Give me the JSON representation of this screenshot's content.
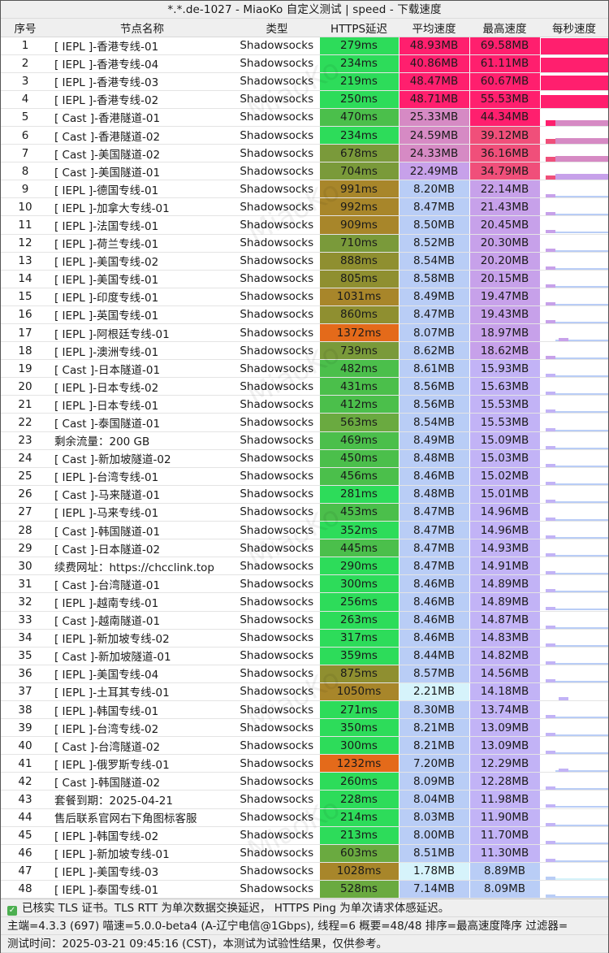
{
  "window": {
    "title": "*.*.de-1027 - MiaoKo 自定义测试 | speed - 下载速度"
  },
  "table": {
    "headers": [
      "序号",
      "节点名称",
      "类型",
      "HTTPS延迟",
      "平均速度",
      "最高速度",
      "每秒速度"
    ],
    "rows": [
      {
        "idx": "1",
        "name": "[ IEPL ]-香港专线-01",
        "type": "Shadowsocks",
        "latency": "279ms",
        "avg": "48.93MB",
        "max": "69.58MB"
      },
      {
        "idx": "2",
        "name": "[ IEPL ]-香港专线-04",
        "type": "Shadowsocks",
        "latency": "234ms",
        "avg": "40.86MB",
        "max": "61.11MB"
      },
      {
        "idx": "3",
        "name": "[ IEPL ]-香港专线-03",
        "type": "Shadowsocks",
        "latency": "219ms",
        "avg": "48.47MB",
        "max": "60.67MB"
      },
      {
        "idx": "4",
        "name": "[ IEPL ]-香港专线-02",
        "type": "Shadowsocks",
        "latency": "250ms",
        "avg": "48.71MB",
        "max": "55.53MB"
      },
      {
        "idx": "5",
        "name": "[ Cast ]-香港隧道-01",
        "type": "Shadowsocks",
        "latency": "470ms",
        "avg": "25.33MB",
        "max": "44.34MB"
      },
      {
        "idx": "6",
        "name": "[ Cast ]-香港隧道-02",
        "type": "Shadowsocks",
        "latency": "234ms",
        "avg": "24.59MB",
        "max": "39.12MB"
      },
      {
        "idx": "7",
        "name": "[ Cast ]-美国隧道-02",
        "type": "Shadowsocks",
        "latency": "678ms",
        "avg": "24.33MB",
        "max": "36.16MB"
      },
      {
        "idx": "8",
        "name": "[ Cast ]-美国隧道-01",
        "type": "Shadowsocks",
        "latency": "704ms",
        "avg": "22.49MB",
        "max": "34.79MB"
      },
      {
        "idx": "9",
        "name": "[ IEPL ]-德国专线-01",
        "type": "Shadowsocks",
        "latency": "991ms",
        "avg": "8.20MB",
        "max": "22.14MB"
      },
      {
        "idx": "10",
        "name": "[ IEPL ]-加拿大专线-01",
        "type": "Shadowsocks",
        "latency": "992ms",
        "avg": "8.47MB",
        "max": "21.43MB"
      },
      {
        "idx": "11",
        "name": "[ IEPL ]-法国专线-01",
        "type": "Shadowsocks",
        "latency": "909ms",
        "avg": "8.50MB",
        "max": "20.45MB"
      },
      {
        "idx": "12",
        "name": "[ IEPL ]-荷兰专线-01",
        "type": "Shadowsocks",
        "latency": "710ms",
        "avg": "8.52MB",
        "max": "20.30MB"
      },
      {
        "idx": "13",
        "name": "[ IEPL ]-美国专线-02",
        "type": "Shadowsocks",
        "latency": "888ms",
        "avg": "8.54MB",
        "max": "20.20MB"
      },
      {
        "idx": "14",
        "name": "[ IEPL ]-美国专线-01",
        "type": "Shadowsocks",
        "latency": "805ms",
        "avg": "8.58MB",
        "max": "20.15MB"
      },
      {
        "idx": "15",
        "name": "[ IEPL ]-印度专线-01",
        "type": "Shadowsocks",
        "latency": "1031ms",
        "avg": "8.49MB",
        "max": "19.47MB"
      },
      {
        "idx": "16",
        "name": "[ IEPL ]-英国专线-01",
        "type": "Shadowsocks",
        "latency": "860ms",
        "avg": "8.47MB",
        "max": "19.43MB"
      },
      {
        "idx": "17",
        "name": "[ IEPL ]-阿根廷专线-01",
        "type": "Shadowsocks",
        "latency": "1372ms",
        "avg": "8.07MB",
        "max": "18.97MB"
      },
      {
        "idx": "18",
        "name": "[ IEPL ]-澳洲专线-01",
        "type": "Shadowsocks",
        "latency": "739ms",
        "avg": "8.62MB",
        "max": "18.62MB"
      },
      {
        "idx": "19",
        "name": "[ Cast ]-日本隧道-01",
        "type": "Shadowsocks",
        "latency": "482ms",
        "avg": "8.61MB",
        "max": "15.93MB"
      },
      {
        "idx": "20",
        "name": "[ IEPL ]-日本专线-02",
        "type": "Shadowsocks",
        "latency": "431ms",
        "avg": "8.56MB",
        "max": "15.63MB"
      },
      {
        "idx": "21",
        "name": "[ IEPL ]-日本专线-01",
        "type": "Shadowsocks",
        "latency": "412ms",
        "avg": "8.56MB",
        "max": "15.53MB"
      },
      {
        "idx": "22",
        "name": "[ Cast ]-泰国隧道-01",
        "type": "Shadowsocks",
        "latency": "563ms",
        "avg": "8.54MB",
        "max": "15.53MB"
      },
      {
        "idx": "23",
        "name": "剩余流量：200 GB",
        "type": "Shadowsocks",
        "latency": "469ms",
        "avg": "8.49MB",
        "max": "15.09MB"
      },
      {
        "idx": "24",
        "name": "[ Cast ]-新加坡隧道-02",
        "type": "Shadowsocks",
        "latency": "450ms",
        "avg": "8.48MB",
        "max": "15.03MB"
      },
      {
        "idx": "25",
        "name": "[ IEPL ]-台湾专线-01",
        "type": "Shadowsocks",
        "latency": "456ms",
        "avg": "8.46MB",
        "max": "15.02MB"
      },
      {
        "idx": "26",
        "name": "[ Cast ]-马来隧道-01",
        "type": "Shadowsocks",
        "latency": "281ms",
        "avg": "8.48MB",
        "max": "15.01MB"
      },
      {
        "idx": "27",
        "name": "[ IEPL ]-马来专线-01",
        "type": "Shadowsocks",
        "latency": "453ms",
        "avg": "8.47MB",
        "max": "14.96MB"
      },
      {
        "idx": "28",
        "name": "[ Cast ]-韩国隧道-01",
        "type": "Shadowsocks",
        "latency": "352ms",
        "avg": "8.47MB",
        "max": "14.96MB"
      },
      {
        "idx": "29",
        "name": "[ Cast ]-日本隧道-02",
        "type": "Shadowsocks",
        "latency": "445ms",
        "avg": "8.47MB",
        "max": "14.93MB"
      },
      {
        "idx": "30",
        "name": "续费网址：https://chcclink.top",
        "type": "Shadowsocks",
        "latency": "290ms",
        "avg": "8.47MB",
        "max": "14.91MB"
      },
      {
        "idx": "31",
        "name": "[ Cast ]-台湾隧道-01",
        "type": "Shadowsocks",
        "latency": "300ms",
        "avg": "8.46MB",
        "max": "14.89MB"
      },
      {
        "idx": "32",
        "name": "[ IEPL ]-越南专线-01",
        "type": "Shadowsocks",
        "latency": "256ms",
        "avg": "8.46MB",
        "max": "14.89MB"
      },
      {
        "idx": "33",
        "name": "[ Cast ]-越南隧道-01",
        "type": "Shadowsocks",
        "latency": "263ms",
        "avg": "8.46MB",
        "max": "14.87MB"
      },
      {
        "idx": "34",
        "name": "[ IEPL ]-新加坡专线-02",
        "type": "Shadowsocks",
        "latency": "317ms",
        "avg": "8.46MB",
        "max": "14.83MB"
      },
      {
        "idx": "35",
        "name": "[ Cast ]-新加坡隧道-01",
        "type": "Shadowsocks",
        "latency": "359ms",
        "avg": "8.44MB",
        "max": "14.82MB"
      },
      {
        "idx": "36",
        "name": "[ IEPL ]-美国专线-04",
        "type": "Shadowsocks",
        "latency": "875ms",
        "avg": "8.57MB",
        "max": "14.56MB"
      },
      {
        "idx": "37",
        "name": "[ IEPL ]-土耳其专线-01",
        "type": "Shadowsocks",
        "latency": "1050ms",
        "avg": "2.21MB",
        "max": "14.18MB"
      },
      {
        "idx": "38",
        "name": "[ IEPL ]-韩国专线-01",
        "type": "Shadowsocks",
        "latency": "271ms",
        "avg": "8.30MB",
        "max": "13.74MB"
      },
      {
        "idx": "39",
        "name": "[ IEPL ]-台湾专线-02",
        "type": "Shadowsocks",
        "latency": "350ms",
        "avg": "8.21MB",
        "max": "13.09MB"
      },
      {
        "idx": "40",
        "name": "[ Cast ]-台湾隧道-02",
        "type": "Shadowsocks",
        "latency": "300ms",
        "avg": "8.21MB",
        "max": "13.09MB"
      },
      {
        "idx": "41",
        "name": "[ IEPL ]-俄罗斯专线-01",
        "type": "Shadowsocks",
        "latency": "1232ms",
        "avg": "7.20MB",
        "max": "12.29MB"
      },
      {
        "idx": "42",
        "name": "[ Cast ]-韩国隧道-02",
        "type": "Shadowsocks",
        "latency": "260ms",
        "avg": "8.09MB",
        "max": "12.28MB"
      },
      {
        "idx": "43",
        "name": "套餐到期：2025-04-21",
        "type": "Shadowsocks",
        "latency": "228ms",
        "avg": "8.04MB",
        "max": "11.98MB"
      },
      {
        "idx": "44",
        "name": "售后联系官网右下角图标客服",
        "type": "Shadowsocks",
        "latency": "214ms",
        "avg": "8.03MB",
        "max": "11.90MB"
      },
      {
        "idx": "45",
        "name": "[ IEPL ]-韩国专线-02",
        "type": "Shadowsocks",
        "latency": "213ms",
        "avg": "8.00MB",
        "max": "11.70MB"
      },
      {
        "idx": "46",
        "name": "[ IEPL ]-新加坡专线-01",
        "type": "Shadowsocks",
        "latency": "603ms",
        "avg": "8.51MB",
        "max": "11.30MB"
      },
      {
        "idx": "47",
        "name": "[ IEPL ]-美国专线-03",
        "type": "Shadowsocks",
        "latency": "1028ms",
        "avg": "1.78MB",
        "max": "8.89MB"
      },
      {
        "idx": "48",
        "name": "[ IEPL ]-泰国专线-01",
        "type": "Shadowsocks",
        "latency": "528ms",
        "avg": "7.14MB",
        "max": "8.09MB"
      }
    ]
  },
  "colors": {
    "latency_fast": "#2ddc5a",
    "latency_mid": "#4bbf4b",
    "latency_olive": "#7a9a3a",
    "latency_brown": "#a8862a",
    "latency_orange": "#e46a1a",
    "latency_red": "#ee5a14",
    "speed_hot": "#ff1f6e",
    "speed_pink": "#f04f7a",
    "speed_mauve": "#d68ac4",
    "speed_violet": "#c7a1ea",
    "speed_lavender": "#c2b3f6",
    "speed_blue": "#b9cdf6",
    "speed_pale": "#d6f3fb"
  },
  "footer": {
    "tls_note": "已核实 TLS 证书。TLS RTT 为单次数据交换延迟， HTTPS Ping 为单次请求体感延迟。",
    "meta_line": "主端=4.3.3 (697) 喵速=5.0.0-beta4 (A-辽宁电信@1Gbps), 线程=6 概要=48/48 排序=最高速度降序 过滤器=",
    "time_line": "测试时间：2025-03-21 09:45:16 (CST)，本测试为试验性结果，仅供参考。"
  },
  "watermark": "MiaoKo"
}
